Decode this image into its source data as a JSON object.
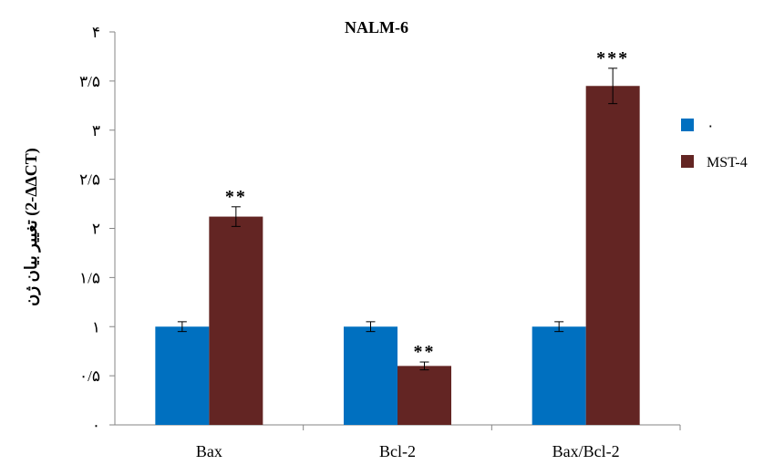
{
  "chart_data": {
    "type": "bar",
    "title": "NALM-6",
    "ylabel": "تغییر بیان ژن (2-ΔΔCT)",
    "xlabel": "",
    "categories": [
      "Bax",
      "Bcl-2",
      "Bax/Bcl-2"
    ],
    "ylim": [
      0,
      4
    ],
    "y_ticks": [
      0,
      0.5,
      1,
      1.5,
      2,
      2.5,
      3,
      3.5,
      4
    ],
    "y_tick_labels": [
      "۰",
      "۰/۵",
      "۱",
      "۱/۵",
      "۲",
      "۲/۵",
      "۳",
      "۳/۵",
      "۴"
    ],
    "grid": false,
    "legend_position": "right",
    "series": [
      {
        "name": "۰",
        "color": "#0070C0",
        "values": [
          1.0,
          1.0,
          1.0
        ],
        "errors": [
          0.05,
          0.05,
          0.05
        ],
        "annotations": [
          "",
          "",
          ""
        ]
      },
      {
        "name": "MST-4",
        "color": "#632523",
        "values": [
          2.12,
          0.6,
          3.45
        ],
        "errors": [
          0.1,
          0.04,
          0.18
        ],
        "annotations": [
          "**",
          "**",
          "***"
        ]
      }
    ]
  }
}
